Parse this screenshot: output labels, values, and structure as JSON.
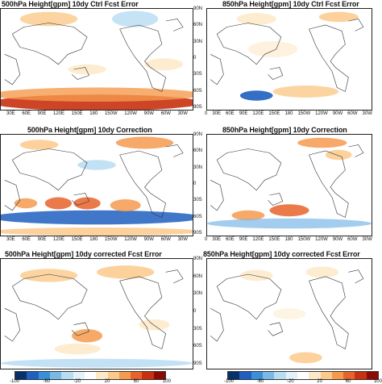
{
  "panels": [
    {
      "id": "p1",
      "title": "500hPa Height[gpm] 10dy Ctrl Fcst Error"
    },
    {
      "id": "p2",
      "title": "850hPa Height[gpm] 10dy Ctrl Fcst Error"
    },
    {
      "id": "p3",
      "title": "500hPa Height[gpm] 10dy Correction"
    },
    {
      "id": "p4",
      "title": "850hPa Height[gpm] 10dy Correction"
    },
    {
      "id": "p5",
      "title": "500hPa Height[gpm] 10dy corrected Fcst Error"
    },
    {
      "id": "p6",
      "title": "850hPa Height[gpm] 10dy corrected Fcst Error"
    }
  ],
  "axes": {
    "lon_ticks_left": [
      "30E",
      "60E",
      "90E",
      "120E",
      "150E",
      "180",
      "150W",
      "120W",
      "90W",
      "60W",
      "30W"
    ],
    "lon_ticks_right": [
      "0",
      "30E",
      "60E",
      "90E",
      "120E",
      "150E",
      "180",
      "150W",
      "120W",
      "90W",
      "60W",
      "30W"
    ],
    "lat_ticks": [
      "90N",
      "60N",
      "30N",
      "0",
      "30S",
      "60S",
      "90S"
    ]
  },
  "colorbars": [
    {
      "ticks": [
        "-100",
        "-60",
        "-20",
        "20",
        "60",
        "100"
      ]
    },
    {
      "ticks": [
        "-100",
        "-60",
        "-20",
        "20",
        "60",
        "100"
      ]
    }
  ],
  "colors": {
    "scale": [
      "#08306b",
      "#1e5fbf",
      "#3a8fd9",
      "#7ab8e8",
      "#b8dcf2",
      "#e3f1fa",
      "#ffffff",
      "#fde9c8",
      "#fbc98a",
      "#f59a4d",
      "#e8632a",
      "#c9300f",
      "#8b0a04"
    ]
  }
}
